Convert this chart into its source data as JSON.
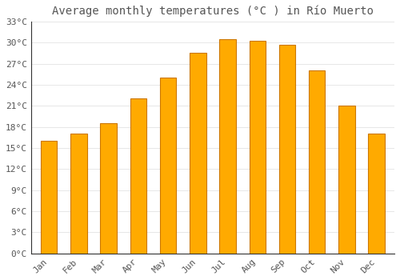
{
  "title": "Average monthly temperatures (°C ) in Río Muerto",
  "months": [
    "Jan",
    "Feb",
    "Mar",
    "Apr",
    "May",
    "Jun",
    "Jul",
    "Aug",
    "Sep",
    "Oct",
    "Nov",
    "Dec"
  ],
  "values": [
    16.0,
    17.0,
    18.5,
    22.0,
    25.0,
    28.5,
    30.5,
    30.3,
    29.7,
    26.0,
    21.0,
    17.0
  ],
  "bar_color": "#FFAA00",
  "bar_edge_color": "#CC7700",
  "background_color": "#FFFFFF",
  "grid_color": "#DDDDDD",
  "text_color": "#555555",
  "ylim": [
    0,
    33
  ],
  "yticks": [
    0,
    3,
    6,
    9,
    12,
    15,
    18,
    21,
    24,
    27,
    30,
    33
  ],
  "ytick_labels": [
    "0°C",
    "3°C",
    "6°C",
    "9°C",
    "12°C",
    "15°C",
    "18°C",
    "21°C",
    "24°C",
    "27°C",
    "30°C",
    "33°C"
  ],
  "title_fontsize": 10,
  "tick_fontsize": 8,
  "bar_width": 0.55
}
